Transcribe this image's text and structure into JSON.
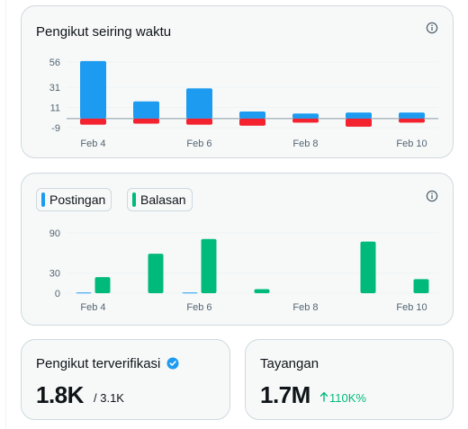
{
  "colors": {
    "blue": "#1d9bf0",
    "red": "#f4212e",
    "green": "#00ba7c",
    "muted": "#536471",
    "grid": "#eff3f4",
    "zero_line": "#8b98a5"
  },
  "followers_over_time": {
    "title": "Pengikut seiring waktu",
    "info_icon": "info-circle-icon"
  },
  "posts_replies": {
    "info_icon": "info-circle-icon",
    "legend": [
      {
        "label": "Postingan",
        "color": "#1d9bf0"
      },
      {
        "label": "Balasan",
        "color": "#00ba7c"
      }
    ]
  },
  "verified_followers": {
    "title": "Pengikut terverifikasi",
    "icon": "verified-badge-icon",
    "value": "1.8K",
    "total": "/ 3.1K"
  },
  "impressions": {
    "title": "Tayangan",
    "value": "1.7M",
    "change_icon": "arrow-up-icon",
    "change": "110K%"
  },
  "chart_data": [
    {
      "type": "bar",
      "title": "Pengikut seiring waktu",
      "x_tick_labels": [
        "Feb 4",
        "Feb 6",
        "Feb 8",
        "Feb 10"
      ],
      "y_ticks": [
        56,
        31,
        11,
        -9
      ],
      "ylim": [
        -9,
        56
      ],
      "categories": [
        "Feb 4",
        "Feb 5",
        "Feb 6",
        "Feb 7",
        "Feb 8",
        "Feb 9",
        "Feb 10"
      ],
      "series": [
        {
          "color": "#1d9bf0",
          "values": [
            57,
            17,
            30,
            7,
            5,
            6,
            6
          ]
        },
        {
          "color": "#f4212e",
          "values": [
            -6,
            -5,
            -6,
            -7,
            -4,
            -8,
            -4
          ]
        }
      ],
      "grid": true,
      "legend": "none"
    },
    {
      "type": "bar",
      "x_tick_labels": [
        "Feb 4",
        "Feb 6",
        "Feb 8",
        "Feb 10"
      ],
      "y_ticks": [
        90,
        30,
        0
      ],
      "ylim": [
        0,
        90
      ],
      "categories": [
        "Feb 4",
        "Feb 5",
        "Feb 6",
        "Feb 7",
        "Feb 8",
        "Feb 9",
        "Feb 10"
      ],
      "series": [
        {
          "name": "Postingan",
          "color": "#1d9bf0",
          "values": [
            1,
            0,
            1,
            0,
            0,
            0,
            0
          ]
        },
        {
          "name": "Balasan",
          "color": "#00ba7c",
          "values": [
            24,
            59,
            81,
            6,
            0,
            77,
            21
          ]
        }
      ],
      "grid": true,
      "legend": "top-left"
    }
  ]
}
